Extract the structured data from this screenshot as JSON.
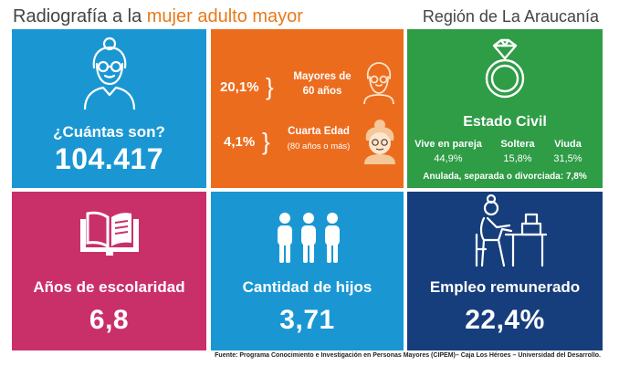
{
  "header": {
    "title_prefix": "Radiografía a la ",
    "title_highlight": "mujer adulto mayor",
    "region": "Región de La Araucanía"
  },
  "tiles": {
    "cuantas": {
      "label": "¿Cuántas son?",
      "value": "104.417"
    },
    "edad": {
      "mayores_pct": "20,1%",
      "mayores_label_1": "Mayores de",
      "mayores_label_2": "60 años",
      "cuarta_pct": "4,1%",
      "cuarta_label_1": "Cuarta Edad",
      "cuarta_label_2": "(80 años o más)"
    },
    "estado_civil": {
      "title": "Estado Civil",
      "items": [
        {
          "label": "Vive en pareja",
          "value": "44,9%"
        },
        {
          "label": "Soltera",
          "value": "15,8%"
        },
        {
          "label": "Viuda",
          "value": "31,5%"
        }
      ],
      "footnote": "Anulada, separada o divorciada: 7,8%"
    },
    "escolaridad": {
      "label": "Años de escolaridad",
      "value": "6,8"
    },
    "hijos": {
      "label": "Cantidad de hijos",
      "value": "3,71"
    },
    "empleo": {
      "label": "Empleo remunerado",
      "value": "22,4%"
    }
  },
  "colors": {
    "blue": "#1a97d3",
    "orange": "#ec6c1e",
    "green": "#2f9c46",
    "magenta": "#c9306a",
    "navy": "#173e7c"
  },
  "icons": [
    "elderly-woman-icon",
    "elderly-woman-small-icon",
    "grandmother-icon",
    "ring-icon",
    "book-icon",
    "children-icon",
    "woman-at-desk-icon"
  ],
  "footer": "Fuente: Programa Conocimiento e Investigación  en Personas Mayores (CIPEM)–  Caja Los Héroes – Universidad  del Desarrollo."
}
